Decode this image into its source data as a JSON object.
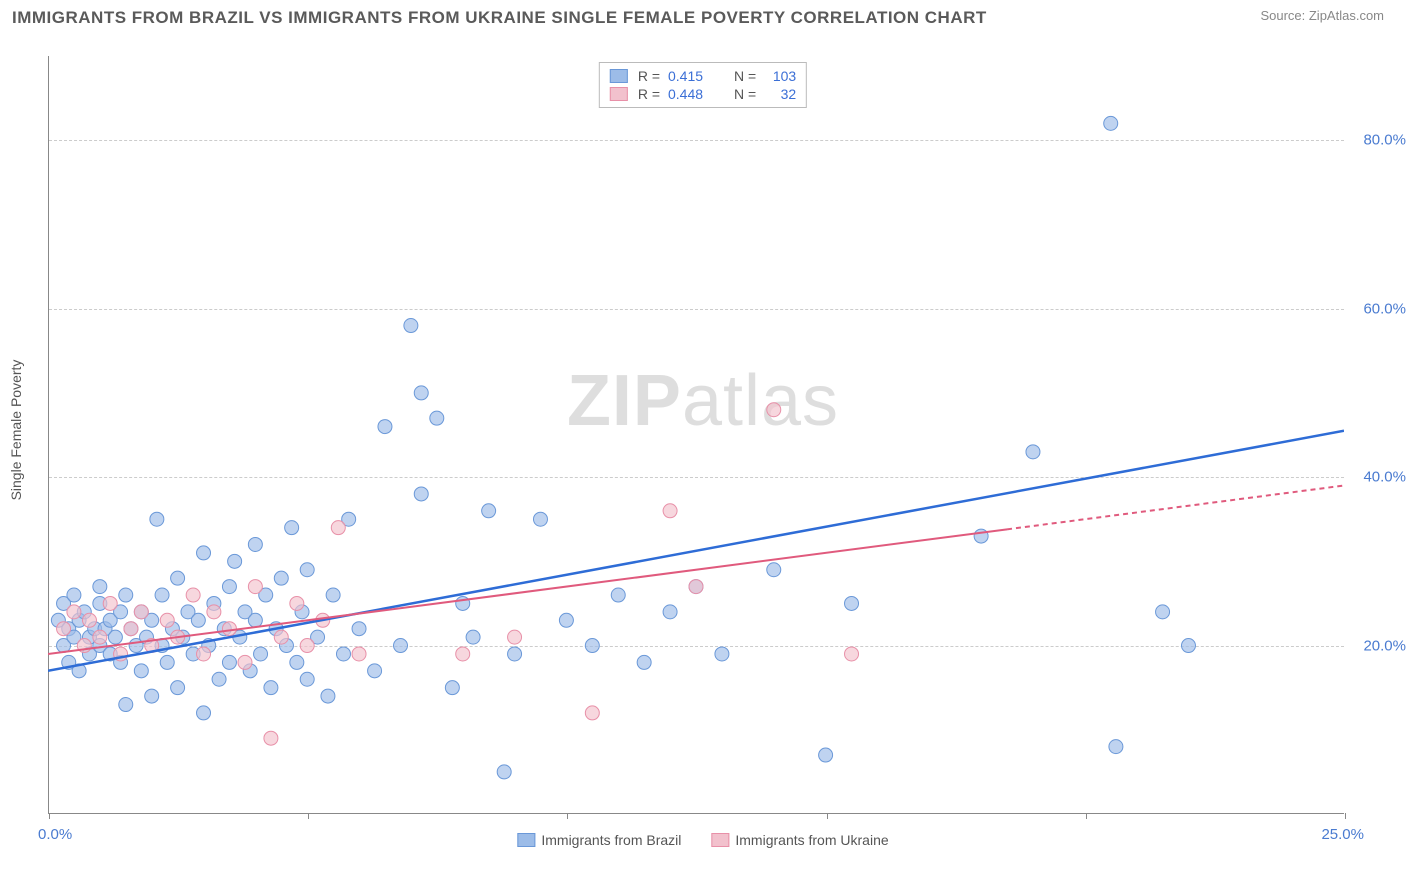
{
  "title": "IMMIGRANTS FROM BRAZIL VS IMMIGRANTS FROM UKRAINE SINGLE FEMALE POVERTY CORRELATION CHART",
  "source_label": "Source: ZipAtlas.com",
  "watermark": {
    "bold": "ZIP",
    "light": "atlas"
  },
  "y_axis_title": "Single Female Poverty",
  "chart": {
    "type": "scatter",
    "xlim": [
      0,
      25
    ],
    "ylim": [
      0,
      90
    ],
    "x_ticks": [
      0,
      5,
      10,
      15,
      20,
      25
    ],
    "y_ticks": [
      20,
      40,
      60,
      80
    ],
    "y_tick_labels": [
      "20.0%",
      "40.0%",
      "60.0%",
      "80.0%"
    ],
    "x_label_start": "0.0%",
    "x_label_end": "25.0%",
    "background_color": "#ffffff",
    "grid_color": "#cccccc",
    "axis_color": "#888888",
    "series": [
      {
        "name": "Immigrants from Brazil",
        "color_fill": "#9cbce8",
        "color_stroke": "#6a98d8",
        "r_value": "0.415",
        "n_value": "103",
        "marker_radius": 7,
        "marker_opacity": 0.65,
        "regression": {
          "x1": 0,
          "y1": 17,
          "x2": 25,
          "y2": 45.5,
          "color": "#2e6cd6",
          "width": 2.5,
          "dash_from_x": null
        },
        "points": [
          [
            0.2,
            23
          ],
          [
            0.3,
            20
          ],
          [
            0.3,
            25
          ],
          [
            0.4,
            18
          ],
          [
            0.4,
            22
          ],
          [
            0.5,
            21
          ],
          [
            0.5,
            26
          ],
          [
            0.6,
            23
          ],
          [
            0.6,
            17
          ],
          [
            0.7,
            24
          ],
          [
            0.8,
            21
          ],
          [
            0.8,
            19
          ],
          [
            0.9,
            22
          ],
          [
            1.0,
            20
          ],
          [
            1.0,
            25
          ],
          [
            1.0,
            27
          ],
          [
            1.1,
            22
          ],
          [
            1.2,
            19
          ],
          [
            1.2,
            23
          ],
          [
            1.3,
            21
          ],
          [
            1.4,
            18
          ],
          [
            1.4,
            24
          ],
          [
            1.5,
            13
          ],
          [
            1.5,
            26
          ],
          [
            1.6,
            22
          ],
          [
            1.7,
            20
          ],
          [
            1.8,
            24
          ],
          [
            1.8,
            17
          ],
          [
            1.9,
            21
          ],
          [
            2.0,
            23
          ],
          [
            2.0,
            14
          ],
          [
            2.1,
            35
          ],
          [
            2.2,
            20
          ],
          [
            2.2,
            26
          ],
          [
            2.3,
            18
          ],
          [
            2.4,
            22
          ],
          [
            2.5,
            28
          ],
          [
            2.5,
            15
          ],
          [
            2.6,
            21
          ],
          [
            2.7,
            24
          ],
          [
            2.8,
            19
          ],
          [
            2.9,
            23
          ],
          [
            3.0,
            31
          ],
          [
            3.0,
            12
          ],
          [
            3.1,
            20
          ],
          [
            3.2,
            25
          ],
          [
            3.3,
            16
          ],
          [
            3.4,
            22
          ],
          [
            3.5,
            27
          ],
          [
            3.5,
            18
          ],
          [
            3.6,
            30
          ],
          [
            3.7,
            21
          ],
          [
            3.8,
            24
          ],
          [
            3.9,
            17
          ],
          [
            4.0,
            23
          ],
          [
            4.0,
            32
          ],
          [
            4.1,
            19
          ],
          [
            4.2,
            26
          ],
          [
            4.3,
            15
          ],
          [
            4.4,
            22
          ],
          [
            4.5,
            28
          ],
          [
            4.6,
            20
          ],
          [
            4.7,
            34
          ],
          [
            4.8,
            18
          ],
          [
            4.9,
            24
          ],
          [
            5.0,
            16
          ],
          [
            5.0,
            29
          ],
          [
            5.2,
            21
          ],
          [
            5.4,
            14
          ],
          [
            5.5,
            26
          ],
          [
            5.7,
            19
          ],
          [
            5.8,
            35
          ],
          [
            6.0,
            22
          ],
          [
            6.3,
            17
          ],
          [
            6.5,
            46
          ],
          [
            6.8,
            20
          ],
          [
            7.0,
            58
          ],
          [
            7.2,
            50
          ],
          [
            7.2,
            38
          ],
          [
            7.5,
            47
          ],
          [
            7.8,
            15
          ],
          [
            8.0,
            25
          ],
          [
            8.2,
            21
          ],
          [
            8.5,
            36
          ],
          [
            8.8,
            5
          ],
          [
            9.0,
            19
          ],
          [
            9.5,
            35
          ],
          [
            10.0,
            23
          ],
          [
            10.5,
            20
          ],
          [
            11.0,
            26
          ],
          [
            11.5,
            18
          ],
          [
            12.0,
            24
          ],
          [
            12.5,
            27
          ],
          [
            13.0,
            19
          ],
          [
            14.0,
            29
          ],
          [
            15.0,
            7
          ],
          [
            15.5,
            25
          ],
          [
            18.0,
            33
          ],
          [
            19.0,
            43
          ],
          [
            20.5,
            82
          ],
          [
            20.6,
            8
          ],
          [
            21.5,
            24
          ],
          [
            22.0,
            20
          ]
        ]
      },
      {
        "name": "Immigrants from Ukraine",
        "color_fill": "#f2c1cd",
        "color_stroke": "#e890a8",
        "r_value": "0.448",
        "n_value": "32",
        "marker_radius": 7,
        "marker_opacity": 0.65,
        "regression": {
          "x1": 0,
          "y1": 19,
          "x2": 25,
          "y2": 39,
          "color": "#e05a7d",
          "width": 2,
          "dash_from_x": 18.5
        },
        "points": [
          [
            0.3,
            22
          ],
          [
            0.5,
            24
          ],
          [
            0.7,
            20
          ],
          [
            0.8,
            23
          ],
          [
            1.0,
            21
          ],
          [
            1.2,
            25
          ],
          [
            1.4,
            19
          ],
          [
            1.6,
            22
          ],
          [
            1.8,
            24
          ],
          [
            2.0,
            20
          ],
          [
            2.3,
            23
          ],
          [
            2.5,
            21
          ],
          [
            2.8,
            26
          ],
          [
            3.0,
            19
          ],
          [
            3.2,
            24
          ],
          [
            3.5,
            22
          ],
          [
            3.8,
            18
          ],
          [
            4.0,
            27
          ],
          [
            4.3,
            9
          ],
          [
            4.5,
            21
          ],
          [
            4.8,
            25
          ],
          [
            5.0,
            20
          ],
          [
            5.3,
            23
          ],
          [
            5.6,
            34
          ],
          [
            6.0,
            19
          ],
          [
            8.0,
            19
          ],
          [
            9.0,
            21
          ],
          [
            10.5,
            12
          ],
          [
            12.0,
            36
          ],
          [
            12.5,
            27
          ],
          [
            14.0,
            48
          ],
          [
            15.5,
            19
          ]
        ]
      }
    ],
    "legend_bottom": [
      {
        "label": "Immigrants from Brazil",
        "fill": "#9cbce8",
        "stroke": "#6a98d8"
      },
      {
        "label": "Immigrants from Ukraine",
        "fill": "#f2c1cd",
        "stroke": "#e890a8"
      }
    ]
  }
}
